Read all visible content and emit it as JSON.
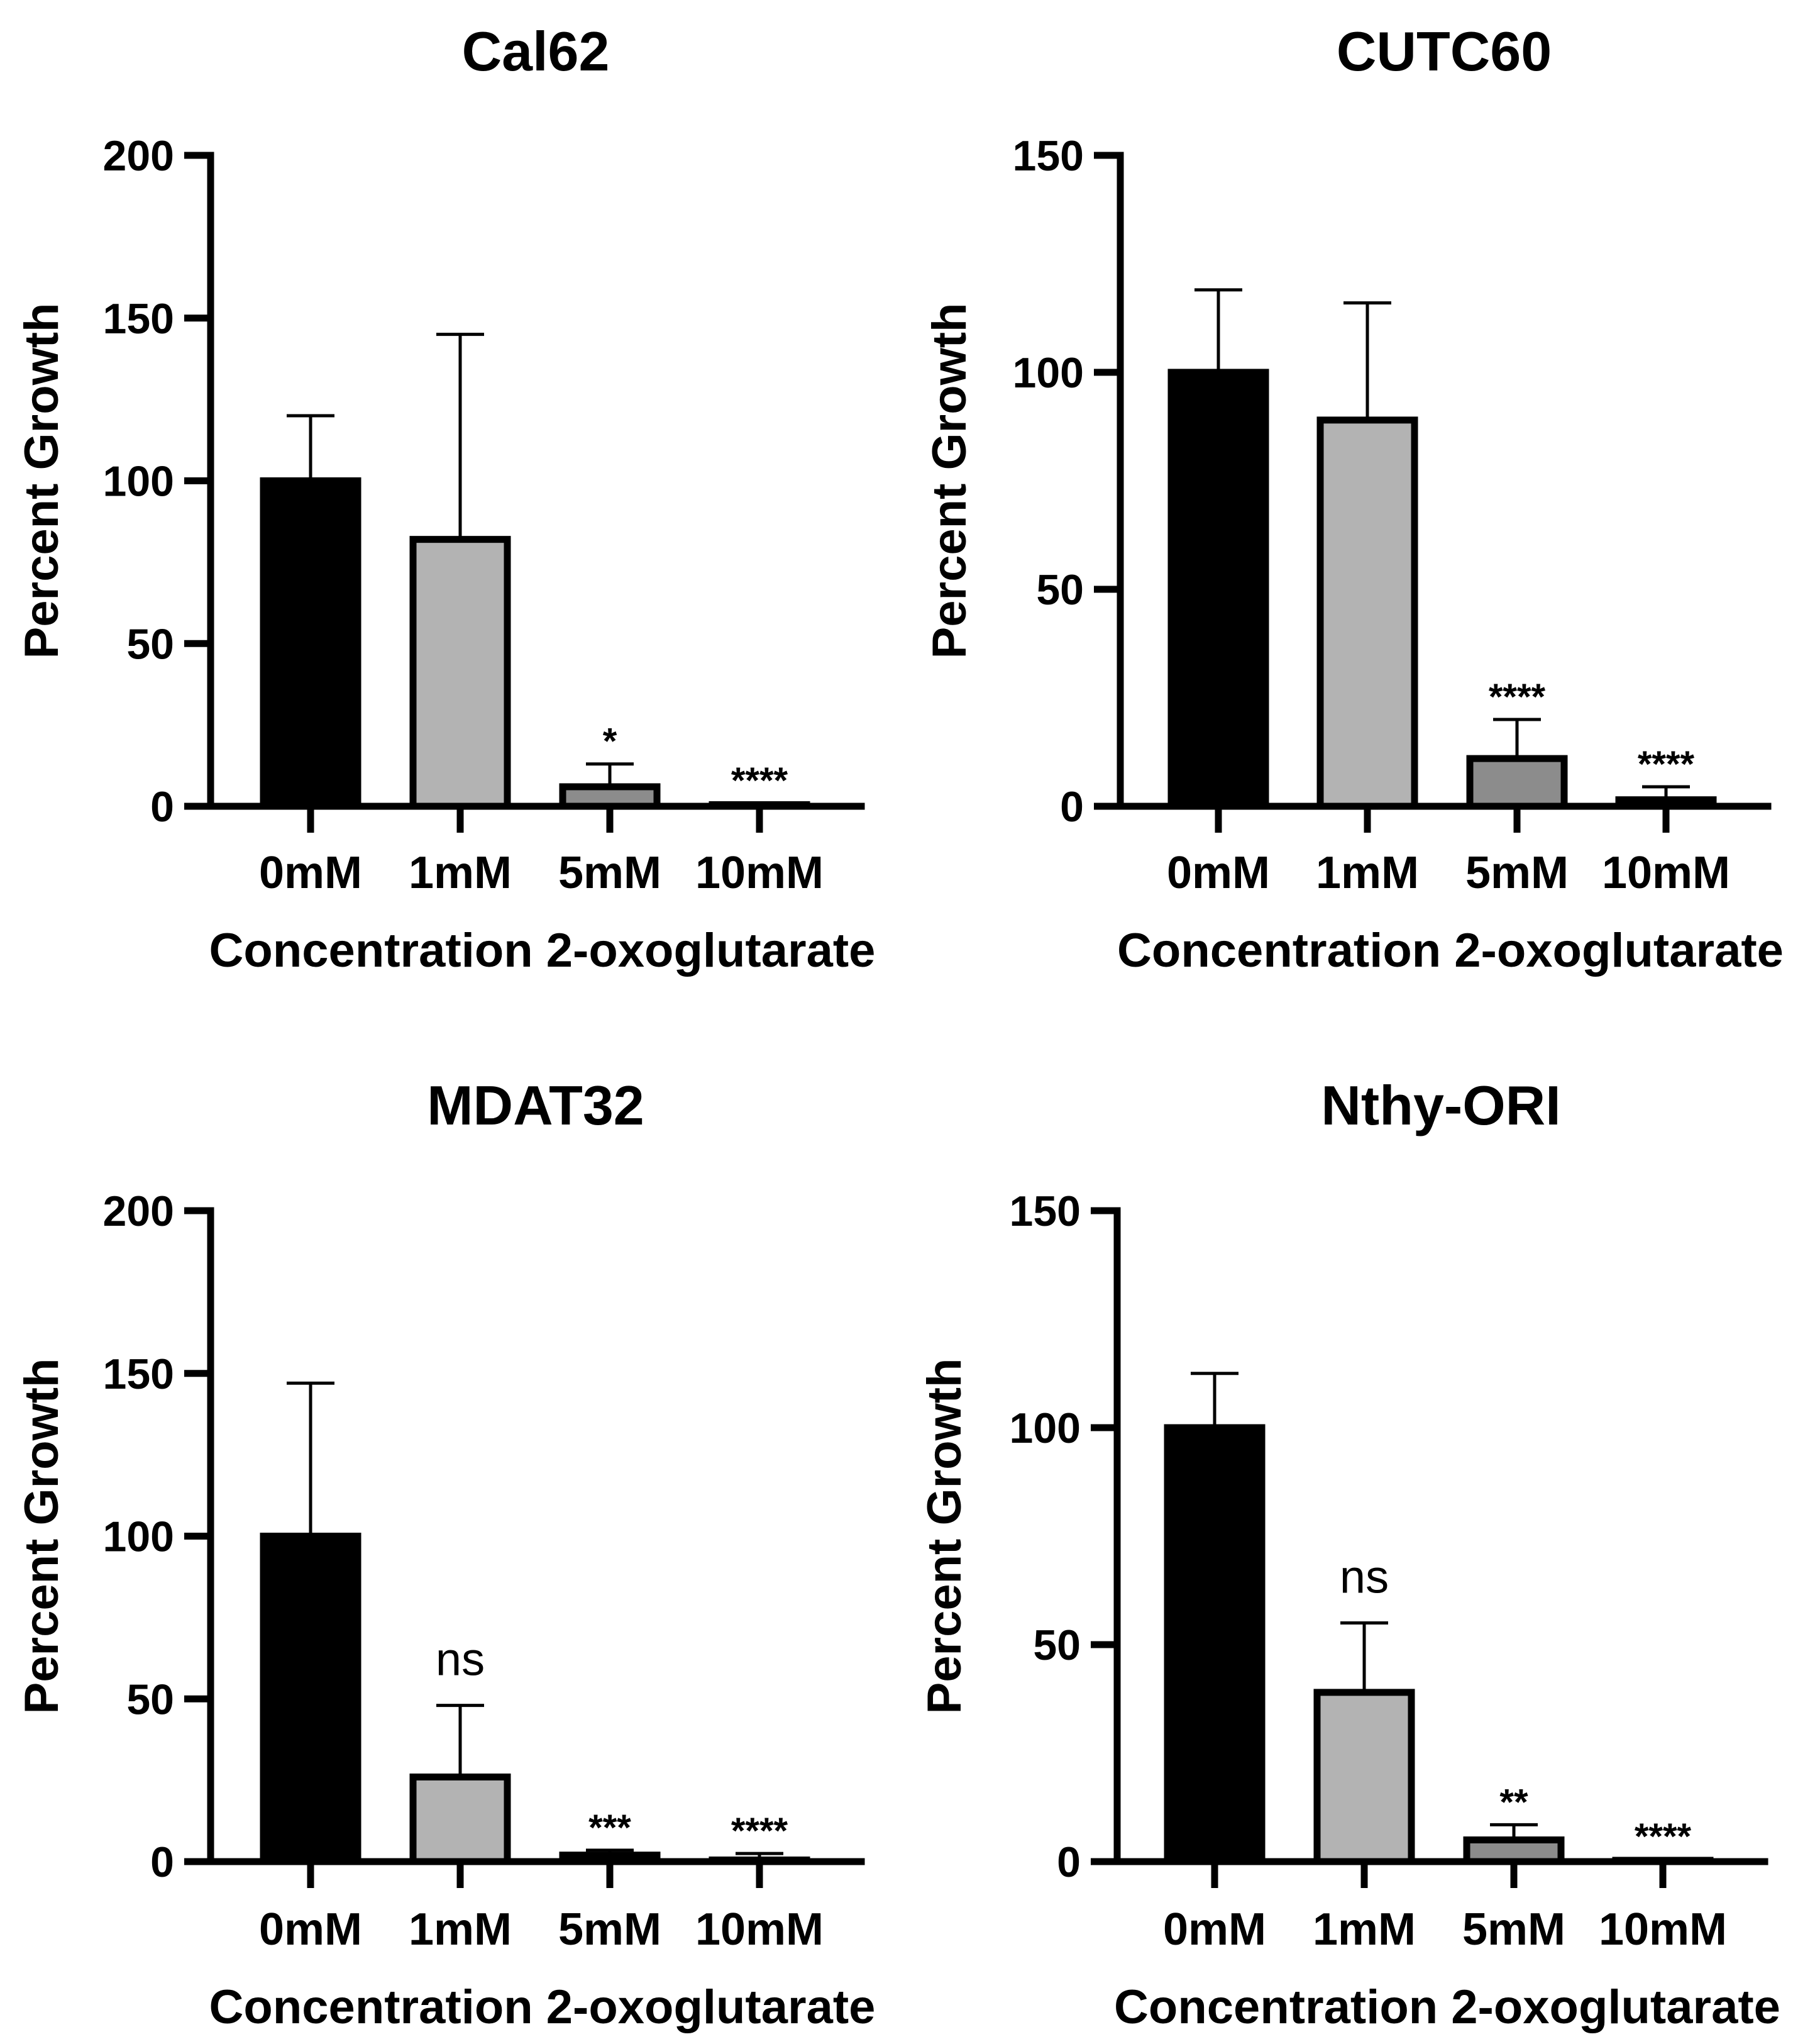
{
  "chart_data": [
    {
      "type": "bar",
      "title": "Cal62",
      "xlabel": "Concentration 2-oxoglutarate",
      "ylabel": "Percent Growth",
      "categories": [
        "0mM",
        "1mM",
        "5mM",
        "10mM"
      ],
      "values": [
        100,
        82,
        6,
        0.5
      ],
      "errors": [
        20,
        63,
        7,
        0.5
      ],
      "significance": [
        "",
        "",
        "*",
        "****"
      ],
      "fills": [
        "#000000",
        "#b3b3b3",
        "#8c8c8c",
        "#8c8c8c"
      ],
      "ylim": [
        0,
        200
      ],
      "yticks": [
        0,
        50,
        100,
        150,
        200
      ]
    },
    {
      "type": "bar",
      "title": "CUTC60",
      "xlabel": "Concentration 2-oxoglutarate",
      "ylabel": "Percent Growth",
      "categories": [
        "0mM",
        "1mM",
        "5mM",
        "10mM"
      ],
      "values": [
        100,
        89,
        11,
        1.5
      ],
      "errors": [
        19,
        27,
        9,
        3
      ],
      "significance": [
        "",
        "",
        "****",
        "****"
      ],
      "fills": [
        "#000000",
        "#b3b3b3",
        "#8c8c8c",
        "#8c8c8c"
      ],
      "ylim": [
        0,
        150
      ],
      "yticks": [
        0,
        50,
        100,
        150
      ]
    },
    {
      "type": "bar",
      "title": "MDAT32",
      "xlabel": "Concentration 2-oxoglutarate",
      "ylabel": "Percent Growth",
      "categories": [
        "0mM",
        "1mM",
        "5mM",
        "10mM"
      ],
      "values": [
        100,
        26,
        2,
        0.5
      ],
      "errors": [
        47,
        22,
        1.5,
        2
      ],
      "significance": [
        "",
        "ns",
        "***",
        "****"
      ],
      "fills": [
        "#000000",
        "#b3b3b3",
        "#8c8c8c",
        "#8c8c8c"
      ],
      "ylim": [
        0,
        200
      ],
      "yticks": [
        0,
        50,
        100,
        150,
        200
      ]
    },
    {
      "type": "bar",
      "title": "Nthy-ORI",
      "xlabel": "Concentration 2-oxoglutarate",
      "ylabel": "Percent Growth",
      "categories": [
        "0mM",
        "1mM",
        "5mM",
        "10mM"
      ],
      "values": [
        100,
        39,
        5,
        0.3
      ],
      "errors": [
        12.5,
        16,
        3.5,
        0.3
      ],
      "significance": [
        "",
        "ns",
        "**",
        "****"
      ],
      "fills": [
        "#000000",
        "#b3b3b3",
        "#8c8c8c",
        "#8c8c8c"
      ],
      "ylim": [
        0,
        150
      ],
      "yticks": [
        0,
        50,
        100,
        150
      ]
    }
  ]
}
